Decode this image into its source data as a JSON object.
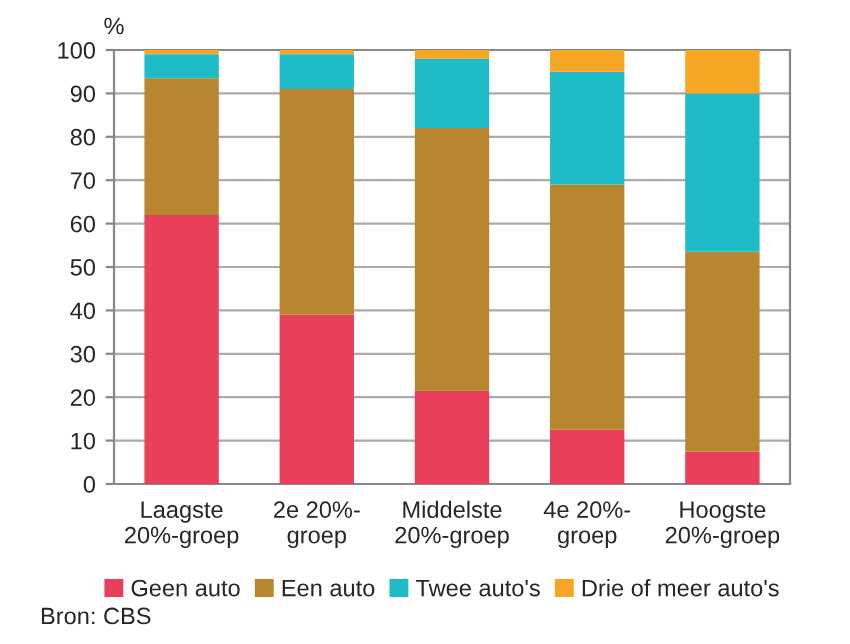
{
  "chart_data": {
    "type": "bar",
    "stacked": true,
    "ylabel": "%",
    "categories": [
      "Laagste\n20%-groep",
      "2e 20%-\ngroep",
      "Middelste\n20%-groep",
      "4e 20%-\ngroep",
      "Hoogste\n20%-groep"
    ],
    "series": [
      {
        "name": "Geen auto",
        "color": "#e8405a",
        "values": [
          62,
          39,
          21.5,
          12.5,
          7.5
        ]
      },
      {
        "name": "Een auto",
        "color": "#b8862f",
        "values": [
          31.5,
          52,
          60.5,
          56.5,
          46
        ]
      },
      {
        "name": "Twee auto's",
        "color": "#1fbcc8",
        "values": [
          5.5,
          8,
          16,
          26,
          36.5
        ]
      },
      {
        "name": "Drie of meer auto's",
        "color": "#f5a623",
        "values": [
          1,
          1,
          2,
          5,
          10
        ]
      }
    ],
    "ylim": [
      0,
      100
    ],
    "yticks": [
      0,
      10,
      20,
      30,
      40,
      50,
      60,
      70,
      80,
      90,
      100
    ],
    "grid": "y",
    "legend": "bottom",
    "annotations": [
      "Bron: CBS"
    ]
  }
}
